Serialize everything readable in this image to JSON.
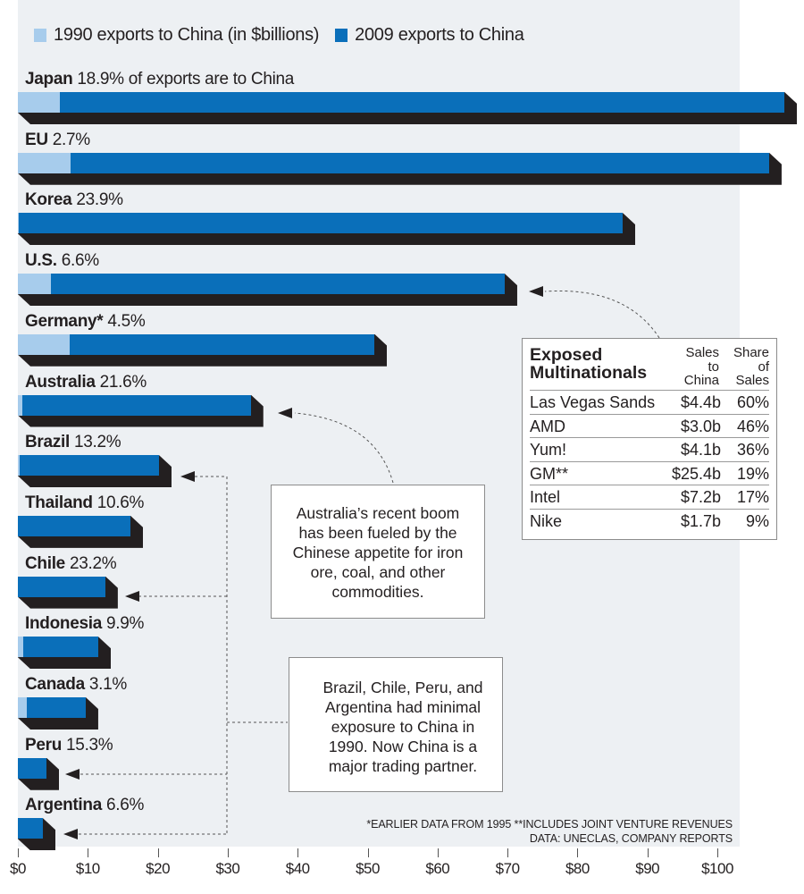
{
  "legend": [
    {
      "label": "1990 exports to China (in $billions)",
      "color": "#a7ccec"
    },
    {
      "label": "2009 exports to China",
      "color": "#0a6fba"
    }
  ],
  "rows": [
    {
      "name": "Japan",
      "pct": "18.9% of exports are to China",
      "v1990": 6.0,
      "v2009": 109.6
    },
    {
      "name": "EU",
      "pct": "2.7%",
      "v1990": 7.5,
      "v2009": 107.4
    },
    {
      "name": "Korea",
      "pct": "23.9%",
      "v1990": 0.1,
      "v2009": 86.5
    },
    {
      "name": "U.S.",
      "pct": "6.6%",
      "v1990": 4.7,
      "v2009": 69.6
    },
    {
      "name": "Germany*",
      "pct": "4.5%",
      "v1990": 7.4,
      "v2009": 51.0
    },
    {
      "name": "Australia",
      "pct": "21.6%",
      "v1990": 0.6,
      "v2009": 33.3
    },
    {
      "name": "Brazil",
      "pct": "13.2%",
      "v1990": 0.3,
      "v2009": 20.2
    },
    {
      "name": "Thailand",
      "pct": "10.6%",
      "v1990": 0.0,
      "v2009": 16.1
    },
    {
      "name": "Chile",
      "pct": "23.2%",
      "v1990": 0.0,
      "v2009": 12.5
    },
    {
      "name": "Indonesia",
      "pct": "9.9%",
      "v1990": 0.8,
      "v2009": 11.5
    },
    {
      "name": "Canada",
      "pct": "3.1%",
      "v1990": 1.3,
      "v2009": 9.7
    },
    {
      "name": "Peru",
      "pct": "15.3%",
      "v1990": 0.0,
      "v2009": 4.1
    },
    {
      "name": "Argentina",
      "pct": "6.6%",
      "v1990": 0.0,
      "v2009": 3.6
    }
  ],
  "axis": {
    "ticks": [
      "$0",
      "$10",
      "$20",
      "$30",
      "$40",
      "$50",
      "$60",
      "$70",
      "$80",
      "$90",
      "$100"
    ]
  },
  "callouts": {
    "australia": "Australia’s recent boom has been fueled by the Chinese appetite for iron ore, coal, and other commodities.",
    "latam": "Brazil, Chile, Peru, and Argentina had minimal exposure to China in 1990. Now China is a major trading partner."
  },
  "table": {
    "title_line1": "Exposed",
    "title_line2": "Multinationals",
    "col1_header": [
      "Sales",
      "to",
      "China"
    ],
    "col2_header": [
      "Share",
      "of",
      "Sales"
    ],
    "rows": [
      {
        "company": "Las Vegas Sands",
        "sales": "$4.4b",
        "share": "60%"
      },
      {
        "company": "AMD",
        "sales": "$3.0b",
        "share": "46%"
      },
      {
        "company": "Yum!",
        "sales": "$4.1b",
        "share": "36%"
      },
      {
        "company": "GM**",
        "sales": "$25.4b",
        "share": "19%"
      },
      {
        "company": "Intel",
        "sales": "$7.2b",
        "share": "17%"
      },
      {
        "company": "Nike",
        "sales": "$1.7b",
        "share": "9%"
      }
    ]
  },
  "footnotes": {
    "line1": "*EARLIER DATA FROM 1995  **INCLUDES JOINT VENTURE REVENUES",
    "line2": "DATA: UNECLAS, COMPANY REPORTS"
  },
  "chart_data": {
    "type": "bar",
    "orientation": "horizontal",
    "title": "Exports to China",
    "xlabel": "$billions",
    "ylabel": "",
    "xlim": [
      0,
      110
    ],
    "categories": [
      "Japan",
      "EU",
      "Korea",
      "U.S.",
      "Germany*",
      "Australia",
      "Brazil",
      "Thailand",
      "Chile",
      "Indonesia",
      "Canada",
      "Peru",
      "Argentina"
    ],
    "series": [
      {
        "name": "1990 exports to China (in $billions)",
        "values": [
          6.0,
          7.5,
          0.1,
          4.7,
          7.4,
          0.6,
          0.3,
          0.0,
          0.0,
          0.8,
          1.3,
          0.0,
          0.0
        ]
      },
      {
        "name": "2009 exports to China",
        "values": [
          109.6,
          107.4,
          86.5,
          69.6,
          51.0,
          33.3,
          20.2,
          16.1,
          12.5,
          11.5,
          9.7,
          4.1,
          3.6
        ]
      }
    ],
    "share_of_exports_to_china_pct": [
      18.9,
      2.7,
      23.9,
      6.6,
      4.5,
      21.6,
      13.2,
      10.6,
      23.2,
      9.9,
      3.1,
      15.3,
      6.6
    ],
    "tick_labels": [
      "$0",
      "$10",
      "$20",
      "$30",
      "$40",
      "$50",
      "$60",
      "$70",
      "$80",
      "$90",
      "$100"
    ],
    "grid": false,
    "legend_position": "top"
  }
}
